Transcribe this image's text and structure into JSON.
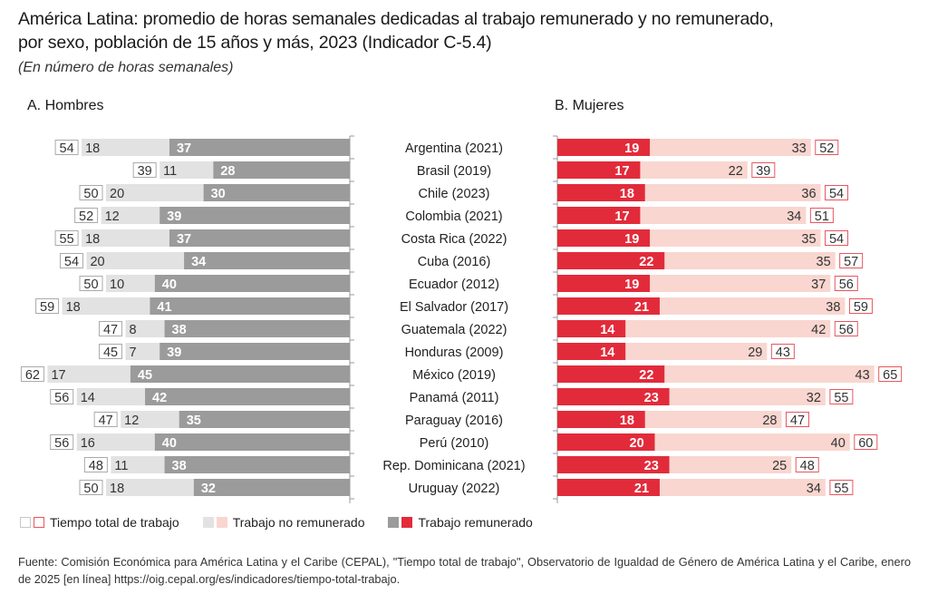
{
  "header": {
    "title_line1": "América Latina: promedio de horas semanales dedicadas al trabajo remunerado y no remunerado,",
    "title_line2": "por sexo, población de 15 años y más, 2023 (Indicador C-5.4)",
    "subtitle": "(En número de horas semanales)"
  },
  "colors": {
    "men_paid": "#9b9b9b",
    "men_unpaid": "#e2e2e2",
    "men_total_border": "#9b9b9b",
    "women_paid": "#e22b3a",
    "women_unpaid": "#f9d6d0",
    "women_total_border": "#e8565f"
  },
  "legend": {
    "total": "Tiempo total de trabajo",
    "unpaid": "Trabajo no remunerado",
    "paid": "Trabajo remunerado"
  },
  "source": "Fuente: Comisión Económica para América Latina y el Caribe (CEPAL), \"Tiempo total de trabajo\", Observatorio de Igualdad de Género de América Latina y el Caribe, enero de 2025 [en línea] https://oig.cepal.org/es/indicadores/tiempo-total-trabajo.",
  "chart_data": {
    "type": "bar",
    "orientation": "horizontal-stacked",
    "title": "América Latina: promedio de horas semanales dedicadas al trabajo remunerado y no remunerado, por sexo, población de 15 años y más, 2023 (Indicador C-5.4)",
    "subtitle": "(En número de horas semanales)",
    "categories": [
      "Argentina (2021)",
      "Brasil (2019)",
      "Chile (2023)",
      "Colombia (2021)",
      "Costa Rica (2022)",
      "Cuba (2016)",
      "Ecuador (2012)",
      "El Salvador (2017)",
      "Guatemala (2022)",
      "Honduras (2009)",
      "México (2019)",
      "Panamá (2011)",
      "Paraguay (2016)",
      "Perú (2010)",
      "Rep. Dominicana (2021)",
      "Uruguay (2022)"
    ],
    "panels": [
      {
        "name": "A. Hombres",
        "direction": "left",
        "series": [
          {
            "name": "Trabajo remunerado",
            "values": [
              37,
              28,
              30,
              39,
              37,
              34,
              40,
              41,
              38,
              39,
              45,
              42,
              35,
              40,
              38,
              32
            ]
          },
          {
            "name": "Trabajo no remunerado",
            "values": [
              18,
              11,
              20,
              12,
              18,
              20,
              10,
              18,
              8,
              7,
              17,
              14,
              12,
              16,
              11,
              18
            ]
          },
          {
            "name": "Tiempo total de trabajo",
            "values": [
              54,
              39,
              50,
              52,
              55,
              54,
              50,
              59,
              47,
              45,
              62,
              56,
              47,
              56,
              48,
              50
            ]
          }
        ]
      },
      {
        "name": "B. Mujeres",
        "direction": "right",
        "series": [
          {
            "name": "Trabajo remunerado",
            "values": [
              19,
              17,
              18,
              17,
              19,
              22,
              19,
              21,
              14,
              14,
              22,
              23,
              18,
              20,
              23,
              21
            ]
          },
          {
            "name": "Trabajo no remunerado",
            "values": [
              33,
              22,
              36,
              34,
              35,
              35,
              37,
              38,
              42,
              29,
              43,
              32,
              28,
              40,
              25,
              34
            ]
          },
          {
            "name": "Tiempo total de trabajo",
            "values": [
              52,
              39,
              54,
              51,
              54,
              57,
              56,
              59,
              56,
              43,
              65,
              55,
              47,
              60,
              48,
              55
            ]
          }
        ]
      }
    ],
    "legend": [
      "Tiempo total de trabajo",
      "Trabajo no remunerado",
      "Trabajo remunerado"
    ],
    "legend_position": "bottom-left",
    "xlabel": "",
    "ylabel": "",
    "grid": false
  }
}
